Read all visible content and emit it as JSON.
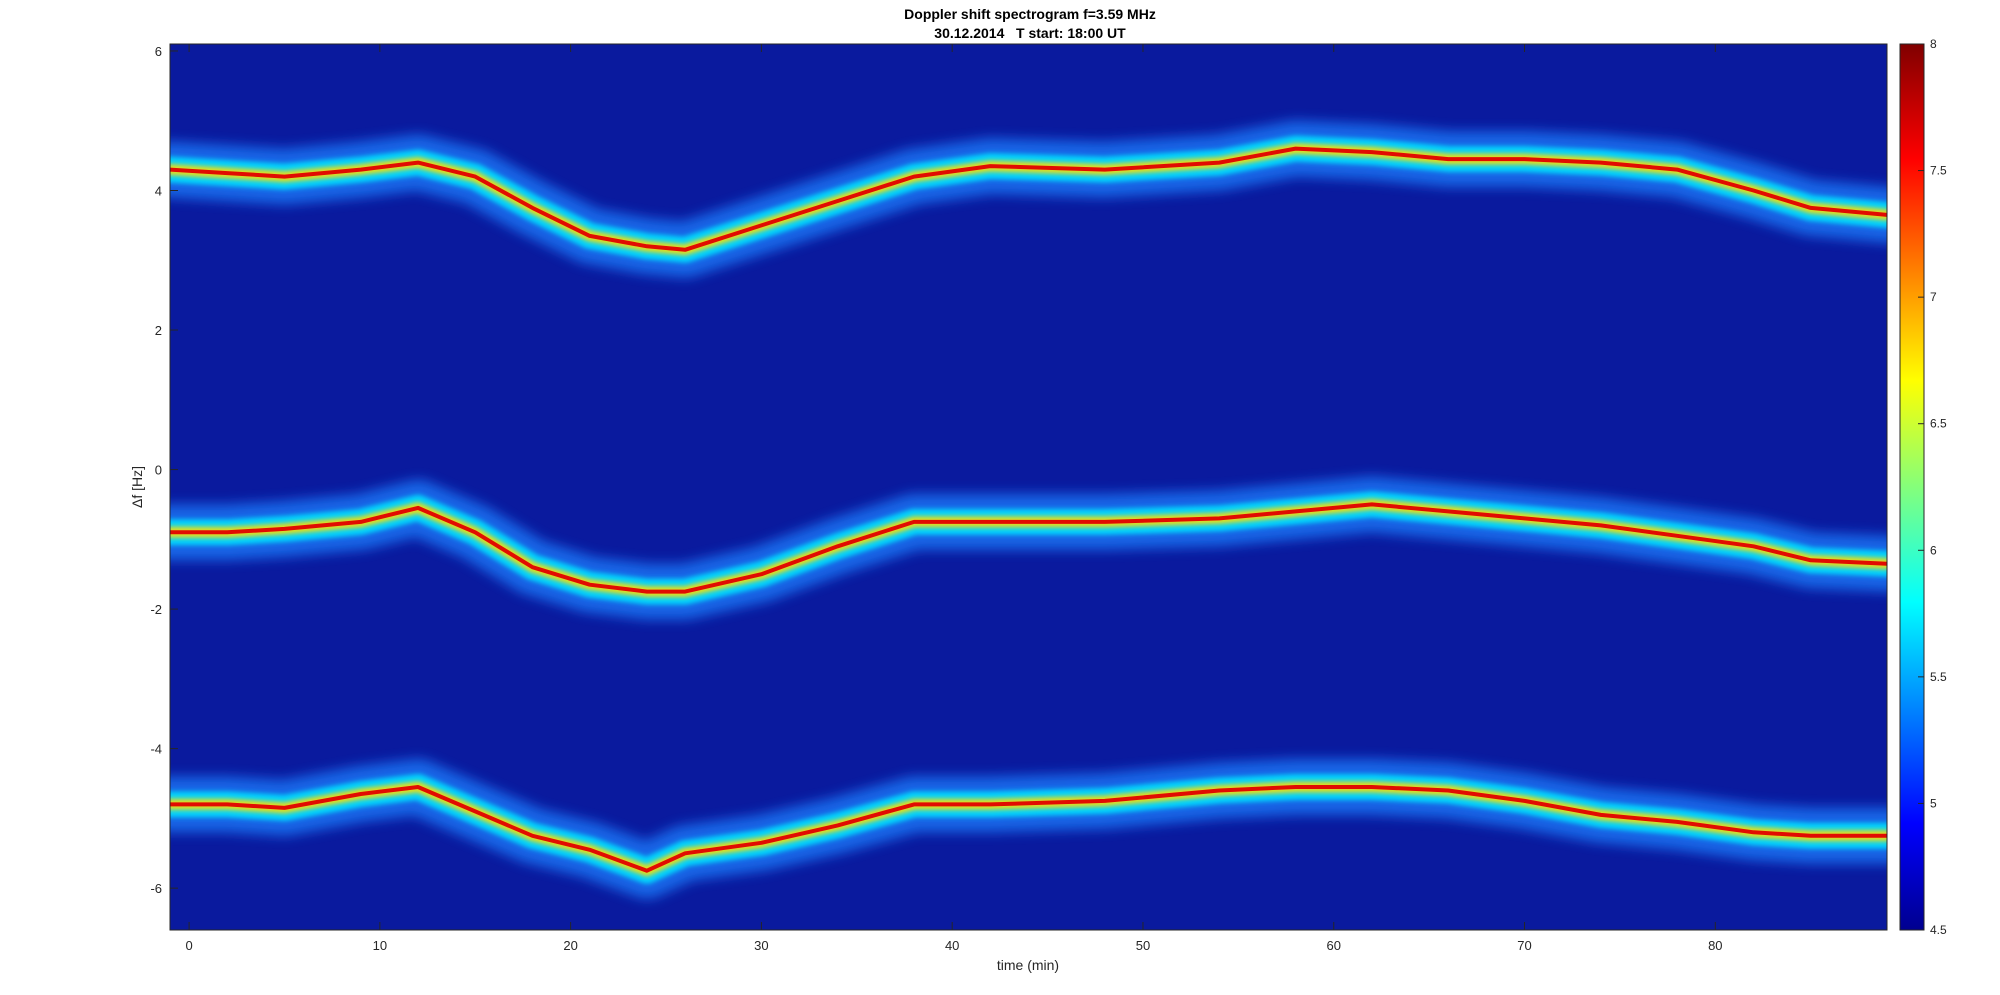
{
  "chart_data": {
    "type": "heatmap",
    "title": "Doppler shift spectrogram f=3.59 MHz",
    "subtitle": "30.12.2014   T start: 18:00 UT",
    "xlabel": "time (min)",
    "ylabel": "Δf [Hz]",
    "xlim": [
      -1,
      89
    ],
    "ylim": [
      -6.6,
      6.1
    ],
    "xticks": [
      0,
      10,
      20,
      30,
      40,
      50,
      60,
      70,
      80
    ],
    "yticks": [
      -6,
      -4,
      -2,
      0,
      2,
      4,
      6
    ],
    "colormap": "jet",
    "colorbar": {
      "range": [
        4.5,
        8
      ],
      "ticks": [
        4.5,
        5,
        5.5,
        6,
        6.5,
        7,
        7.5,
        8
      ]
    },
    "background_color": "#0a1a9e",
    "series": [
      {
        "x": [
          -1,
          2,
          5,
          9,
          12,
          15,
          18,
          21,
          24,
          26,
          30,
          34,
          38,
          42,
          48,
          54,
          58,
          62,
          66,
          70,
          74,
          78,
          82,
          85,
          89
        ],
        "y": [
          4.3,
          4.25,
          4.2,
          4.3,
          4.4,
          4.2,
          3.75,
          3.35,
          3.2,
          3.15,
          3.5,
          3.85,
          4.2,
          4.35,
          4.3,
          4.4,
          4.6,
          4.55,
          4.45,
          4.45,
          4.4,
          4.3,
          4.0,
          3.75,
          3.65
        ]
      },
      {
        "x": [
          -1,
          2,
          5,
          9,
          12,
          15,
          18,
          21,
          24,
          26,
          30,
          34,
          38,
          42,
          48,
          54,
          58,
          62,
          66,
          70,
          74,
          78,
          82,
          85,
          89
        ],
        "y": [
          -0.9,
          -0.9,
          -0.85,
          -0.75,
          -0.55,
          -0.9,
          -1.4,
          -1.65,
          -1.75,
          -1.75,
          -1.5,
          -1.1,
          -0.75,
          -0.75,
          -0.75,
          -0.7,
          -0.6,
          -0.5,
          -0.6,
          -0.7,
          -0.8,
          -0.95,
          -1.1,
          -1.3,
          -1.35
        ]
      },
      {
        "x": [
          -1,
          2,
          5,
          9,
          12,
          15,
          18,
          21,
          24,
          26,
          30,
          34,
          38,
          42,
          48,
          54,
          58,
          62,
          66,
          70,
          74,
          78,
          82,
          85,
          89
        ],
        "y": [
          -4.8,
          -4.8,
          -4.85,
          -4.65,
          -4.55,
          -4.9,
          -5.25,
          -5.45,
          -5.75,
          -5.5,
          -5.35,
          -5.1,
          -4.8,
          -4.8,
          -4.75,
          -4.6,
          -4.55,
          -4.55,
          -4.6,
          -4.75,
          -4.95,
          -5.05,
          -5.2,
          -5.25,
          -5.25
        ]
      }
    ]
  }
}
